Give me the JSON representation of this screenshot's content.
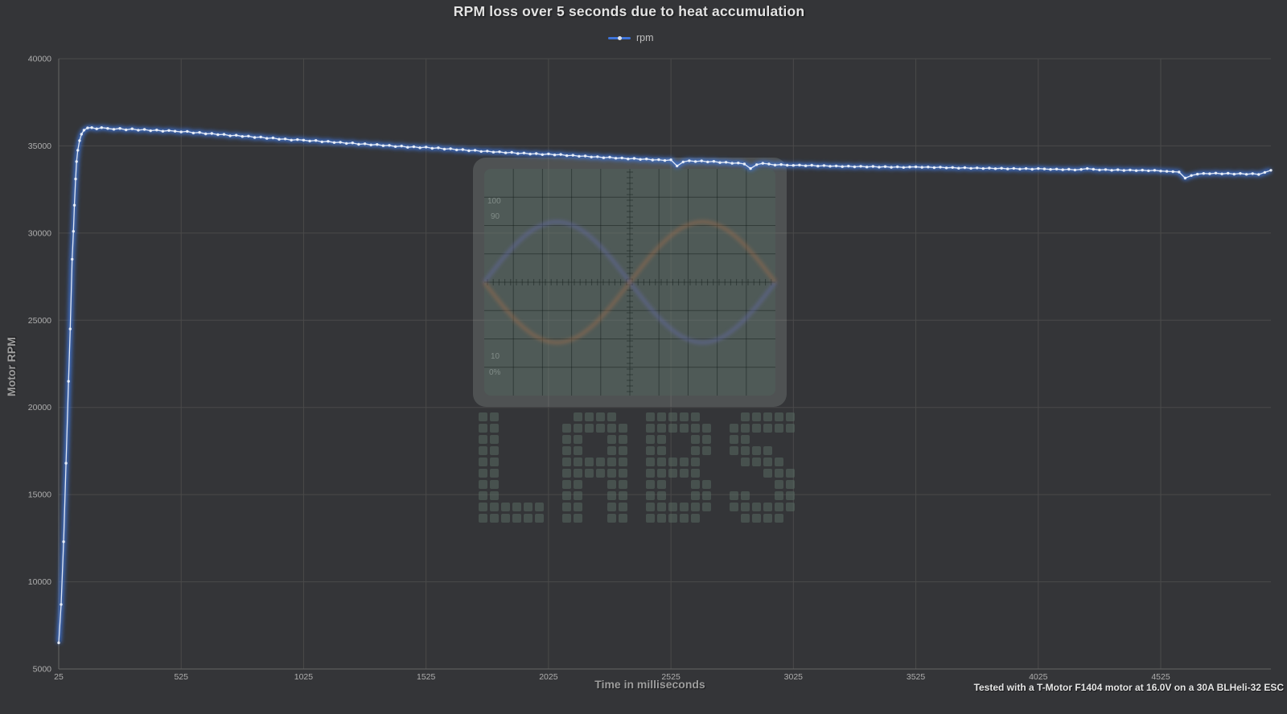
{
  "title": "RPM loss over 5 seconds due to heat accumulation",
  "legend": {
    "label": "rpm",
    "line_color": "#3f74d9",
    "marker_color": "#d9dde3"
  },
  "footer": "Tested with a T-Motor F1404 motor at 16.0V on a 30A BLHeli-32 ESC",
  "watermark": {
    "brand": "LABS",
    "scope_labels": [
      "100",
      "90",
      "10",
      "0%"
    ]
  },
  "colors": {
    "background": "#343538",
    "gridline": "#4a4a4a",
    "axis_line": "#656565",
    "tick_label": "#aeaeae",
    "line_glow": "#2f6ad6",
    "line": "#4a82e8",
    "line_core": "#e9edf6",
    "marker": "#eef2f8"
  },
  "chart_data": {
    "type": "line",
    "title": "RPM loss over 5 seconds due to heat accumulation",
    "series_name": "rpm",
    "xlabel": "Time in milliseconds",
    "ylabel": "Motor RPM",
    "xlim": [
      25,
      4975
    ],
    "ylim": [
      5000,
      40000
    ],
    "x_ticks": [
      25,
      525,
      1025,
      1525,
      2025,
      2525,
      3025,
      3525,
      4025,
      4525
    ],
    "y_ticks": [
      5000,
      10000,
      15000,
      20000,
      25000,
      30000,
      35000,
      40000
    ],
    "grid": true,
    "legend_position": "top-center",
    "rise_points": [
      [
        25,
        6500
      ],
      [
        35,
        8700
      ],
      [
        45,
        12300
      ],
      [
        55,
        16800
      ],
      [
        65,
        21500
      ],
      [
        72,
        24500
      ],
      [
        80,
        28500
      ],
      [
        85,
        30100
      ],
      [
        89,
        31600
      ],
      [
        94,
        33100
      ],
      [
        98,
        34100
      ],
      [
        103,
        34750
      ],
      [
        110,
        35300
      ],
      [
        118,
        35670
      ],
      [
        128,
        35900
      ],
      [
        143,
        36030
      ],
      [
        160,
        36050
      ],
      [
        180,
        35980
      ],
      [
        200,
        36050
      ],
      [
        225,
        36000
      ],
      [
        250,
        35950
      ],
      [
        275,
        36000
      ],
      [
        300,
        35920
      ],
      [
        325,
        35980
      ],
      [
        350,
        35900
      ],
      [
        375,
        35940
      ],
      [
        400,
        35870
      ],
      [
        425,
        35910
      ],
      [
        450,
        35840
      ],
      [
        475,
        35880
      ],
      [
        500,
        35840
      ]
    ],
    "tail": {
      "t_start": 525,
      "t_step": 25,
      "rpm": [
        35800,
        35830,
        35740,
        35770,
        35690,
        35710,
        35640,
        35660,
        35580,
        35610,
        35540,
        35560,
        35480,
        35510,
        35430,
        35460,
        35380,
        35400,
        35330,
        35360,
        35330,
        35280,
        35310,
        35230,
        35260,
        35190,
        35210,
        35140,
        35170,
        35090,
        35120,
        35050,
        35080,
        35010,
        35030,
        34960,
        34990,
        34920,
        34950,
        34890,
        34930,
        34860,
        34890,
        34810,
        34840,
        34770,
        34790,
        34720,
        34750,
        34680,
        34700,
        34640,
        34660,
        34600,
        34630,
        34560,
        34590,
        34530,
        34560,
        34500,
        34540,
        34480,
        34510,
        34440,
        34460,
        34400,
        34420,
        34360,
        34380,
        34320,
        34350,
        34290,
        34310,
        34250,
        34280,
        34220,
        34250,
        34190,
        34210,
        34160,
        34200,
        33850,
        34080,
        34150,
        34100,
        34140,
        34080,
        34110,
        34040,
        34060,
        34000,
        34020,
        33960,
        33700,
        33920,
        34000,
        33960,
        33900,
        33930,
        33890,
        33880,
        33900,
        33860,
        33890,
        33840,
        33870,
        33830,
        33850,
        33810,
        33840,
        33800,
        33830,
        33790,
        33820,
        33780,
        33810,
        33770,
        33800,
        33760,
        33790,
        33800,
        33770,
        33790,
        33750,
        33780,
        33740,
        33760,
        33720,
        33750,
        33710,
        33740,
        33700,
        33730,
        33690,
        33720,
        33680,
        33710,
        33670,
        33700,
        33660,
        33700,
        33680,
        33650,
        33670,
        33630,
        33660,
        33620,
        33650,
        33700,
        33660,
        33620,
        33640,
        33600,
        33630,
        33590,
        33620,
        33580,
        33610,
        33570,
        33600,
        33560,
        33540,
        33520,
        33500,
        33150,
        33300,
        33380,
        33420,
        33400,
        33440,
        33390,
        33430,
        33380,
        33420,
        33370,
        33410,
        33360,
        33480,
        33600
      ]
    }
  }
}
